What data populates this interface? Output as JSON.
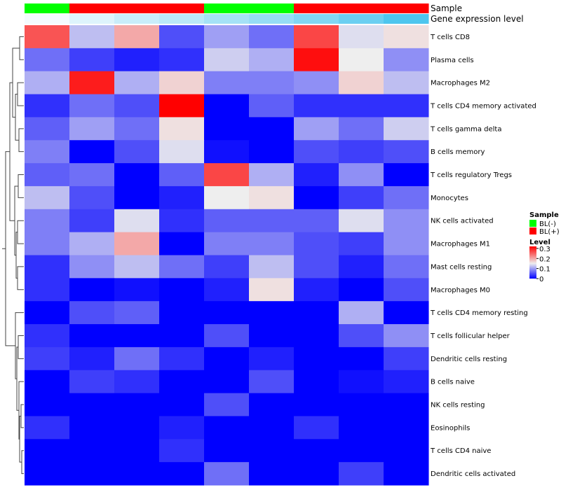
{
  "chart_data": {
    "type": "heatmap",
    "title": "",
    "annotation_rows": [
      {
        "name": "Sample",
        "values": [
          "BL(-)",
          "BL(+)",
          "BL(+)",
          "BL(+)",
          "BL(-)",
          "BL(-)",
          "BL(+)",
          "BL(+)",
          "BL(+)"
        ]
      },
      {
        "name": "Gene expression level",
        "values": [
          0.03,
          0.06,
          0.09,
          0.11,
          0.14,
          0.16,
          0.19,
          0.22,
          0.26
        ]
      }
    ],
    "annotation_colors": {
      "Sample": {
        "BL(-)": "#00ff00",
        "BL(+)": "#ff0000"
      },
      "Gene expression level": {
        "low": "#f4fbfe",
        "high": "#4ec6ee"
      }
    },
    "rows": [
      "T cells CD8",
      "Plasma cells",
      "Macrophages M2",
      "T cells CD4 memory activated",
      "T cells gamma delta",
      "B cells memory",
      "T cells regulatory  Tregs",
      "Monocytes",
      "NK cells activated",
      "Macrophages M1",
      "Mast cells resting",
      "Macrophages M0",
      "T cells CD4 memory resting",
      "T cells follicular helper",
      "Dendritic cells resting",
      "B cells naive",
      "NK cells resting",
      "Eosinophils",
      "T cells CD4 naive",
      "Dendritic cells activated"
    ],
    "values": [
      [
        0.26,
        0.12,
        0.2,
        0.05,
        0.1,
        0.07,
        0.27,
        0.14,
        0.16
      ],
      [
        0.07,
        0.04,
        0.02,
        0.03,
        0.13,
        0.11,
        0.31,
        0.15,
        0.09
      ],
      [
        0.11,
        0.3,
        0.11,
        0.17,
        0.08,
        0.08,
        0.09,
        0.17,
        0.12
      ],
      [
        0.03,
        0.07,
        0.05,
        0.32,
        0.0,
        0.06,
        0.03,
        0.03,
        0.03
      ],
      [
        0.06,
        0.1,
        0.07,
        0.16,
        0.0,
        0.0,
        0.1,
        0.07,
        0.13
      ],
      [
        0.08,
        0.0,
        0.05,
        0.14,
        0.01,
        0.0,
        0.05,
        0.04,
        0.05
      ],
      [
        0.06,
        0.07,
        0.0,
        0.06,
        0.27,
        0.11,
        0.02,
        0.09,
        0.0
      ],
      [
        0.12,
        0.05,
        0.0,
        0.02,
        0.15,
        0.16,
        0.0,
        0.04,
        0.07
      ],
      [
        0.08,
        0.04,
        0.14,
        0.03,
        0.06,
        0.06,
        0.06,
        0.14,
        0.09
      ],
      [
        0.08,
        0.11,
        0.2,
        0.0,
        0.08,
        0.08,
        0.05,
        0.04,
        0.09
      ],
      [
        0.03,
        0.09,
        0.12,
        0.07,
        0.04,
        0.12,
        0.05,
        0.02,
        0.07
      ],
      [
        0.03,
        0.0,
        0.01,
        0.0,
        0.02,
        0.16,
        0.02,
        0.0,
        0.05
      ],
      [
        0.0,
        0.05,
        0.06,
        0.0,
        0.0,
        0.0,
        0.0,
        0.11,
        0.0
      ],
      [
        0.03,
        0.0,
        0.0,
        0.0,
        0.05,
        0.0,
        0.0,
        0.05,
        0.09
      ],
      [
        0.04,
        0.02,
        0.07,
        0.03,
        0.0,
        0.02,
        0.0,
        0.0,
        0.04
      ],
      [
        0.0,
        0.04,
        0.03,
        0.0,
        0.0,
        0.05,
        0.0,
        0.01,
        0.02
      ],
      [
        0.0,
        0.0,
        0.0,
        0.0,
        0.05,
        0.0,
        0.0,
        0.0,
        0.0
      ],
      [
        0.03,
        0.0,
        0.0,
        0.02,
        0.0,
        0.0,
        0.03,
        0.0,
        0.0
      ],
      [
        0.0,
        0.0,
        0.0,
        0.03,
        0.0,
        0.0,
        0.0,
        0.0,
        0.0
      ],
      [
        0.0,
        0.0,
        0.0,
        0.0,
        0.07,
        0.0,
        0.0,
        0.04,
        0.0
      ]
    ],
    "color_scale": {
      "min": 0,
      "mid": 0.15,
      "max": 0.32,
      "low": "#0000ff",
      "mid_color": "#eeeeee",
      "high": "#ff0000"
    },
    "legend": {
      "sample_title": "Sample",
      "sample_items": [
        {
          "label": "BL(-)",
          "color": "#00ff00"
        },
        {
          "label": "BL(+)",
          "color": "#ff0000"
        }
      ],
      "level_title": "Level",
      "level_ticks": [
        0.3,
        0.2,
        0.1,
        0
      ]
    }
  }
}
